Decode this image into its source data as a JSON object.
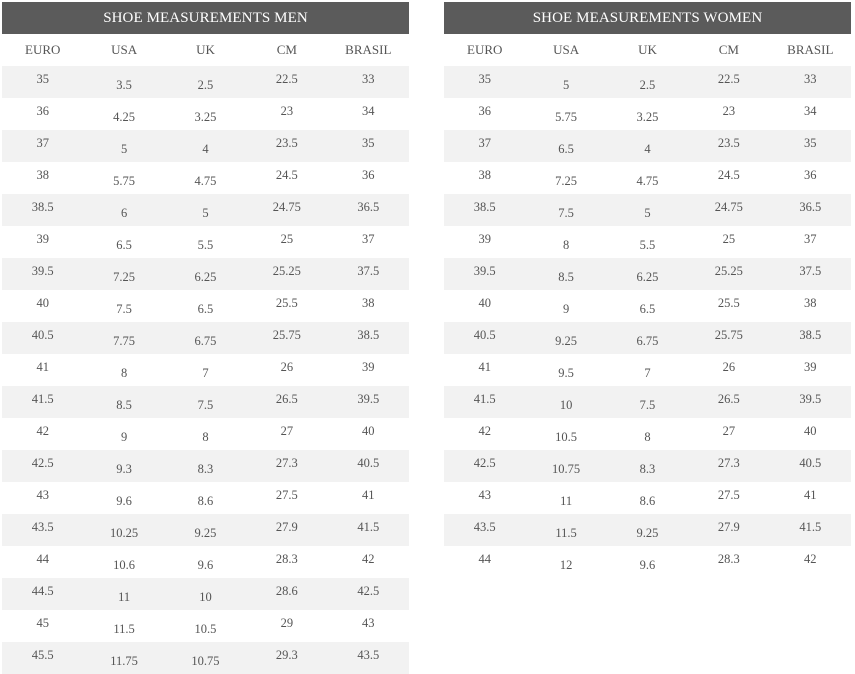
{
  "men": {
    "title": "SHOE MEASUREMENTS MEN",
    "columns": [
      "EURO",
      "USA",
      "UK",
      "CM",
      "BRASIL"
    ],
    "rows": [
      [
        "35",
        "3.5",
        "2.5",
        "22.5",
        "33"
      ],
      [
        "36",
        "4.25",
        "3.25",
        "23",
        "34"
      ],
      [
        "37",
        "5",
        "4",
        "23.5",
        "35"
      ],
      [
        "38",
        "5.75",
        "4.75",
        "24.5",
        "36"
      ],
      [
        "38.5",
        "6",
        "5",
        "24.75",
        "36.5"
      ],
      [
        "39",
        "6.5",
        "5.5",
        "25",
        "37"
      ],
      [
        "39.5",
        "7.25",
        "6.25",
        "25.25",
        "37.5"
      ],
      [
        "40",
        "7.5",
        "6.5",
        "25.5",
        "38"
      ],
      [
        "40.5",
        "7.75",
        "6.75",
        "25.75",
        "38.5"
      ],
      [
        "41",
        "8",
        "7",
        "26",
        "39"
      ],
      [
        "41.5",
        "8.5",
        "7.5",
        "26.5",
        "39.5"
      ],
      [
        "42",
        "9",
        "8",
        "27",
        "40"
      ],
      [
        "42.5",
        "9.3",
        "8.3",
        "27.3",
        "40.5"
      ],
      [
        "43",
        "9.6",
        "8.6",
        "27.5",
        "41"
      ],
      [
        "43.5",
        "10.25",
        "9.25",
        "27.9",
        "41.5"
      ],
      [
        "44",
        "10.6",
        "9.6",
        "28.3",
        "42"
      ],
      [
        "44.5",
        "11",
        "10",
        "28.6",
        "42.5"
      ],
      [
        "45",
        "11.5",
        "10.5",
        "29",
        "43"
      ],
      [
        "45.5",
        "11.75",
        "10.75",
        "29.3",
        "43.5"
      ]
    ]
  },
  "women": {
    "title": "SHOE MEASUREMENTS WOMEN",
    "columns": [
      "EURO",
      "USA",
      "UK",
      "CM",
      "BRASIL"
    ],
    "rows": [
      [
        "35",
        "5",
        "2.5",
        "22.5",
        "33"
      ],
      [
        "36",
        "5.75",
        "3.25",
        "23",
        "34"
      ],
      [
        "37",
        "6.5",
        "4",
        "23.5",
        "35"
      ],
      [
        "38",
        "7.25",
        "4.75",
        "24.5",
        "36"
      ],
      [
        "38.5",
        "7.5",
        "5",
        "24.75",
        "36.5"
      ],
      [
        "39",
        "8",
        "5.5",
        "25",
        "37"
      ],
      [
        "39.5",
        "8.5",
        "6.25",
        "25.25",
        "37.5"
      ],
      [
        "40",
        "9",
        "6.5",
        "25.5",
        "38"
      ],
      [
        "40.5",
        "9.25",
        "6.75",
        "25.75",
        "38.5"
      ],
      [
        "41",
        "9.5",
        "7",
        "26",
        "39"
      ],
      [
        "41.5",
        "10",
        "7.5",
        "26.5",
        "39.5"
      ],
      [
        "42",
        "10.5",
        "8",
        "27",
        "40"
      ],
      [
        "42.5",
        "10.75",
        "8.3",
        "27.3",
        "40.5"
      ],
      [
        "43",
        "11",
        "8.6",
        "27.5",
        "41"
      ],
      [
        "43.5",
        "11.5",
        "9.25",
        "27.9",
        "41.5"
      ],
      [
        "44",
        "12",
        "9.6",
        "28.3",
        "42"
      ]
    ]
  },
  "colors": {
    "header_bg": "#5b5b5b",
    "header_text": "#ffffff",
    "stripe": "#f2f2f2",
    "text": "#555555"
  }
}
